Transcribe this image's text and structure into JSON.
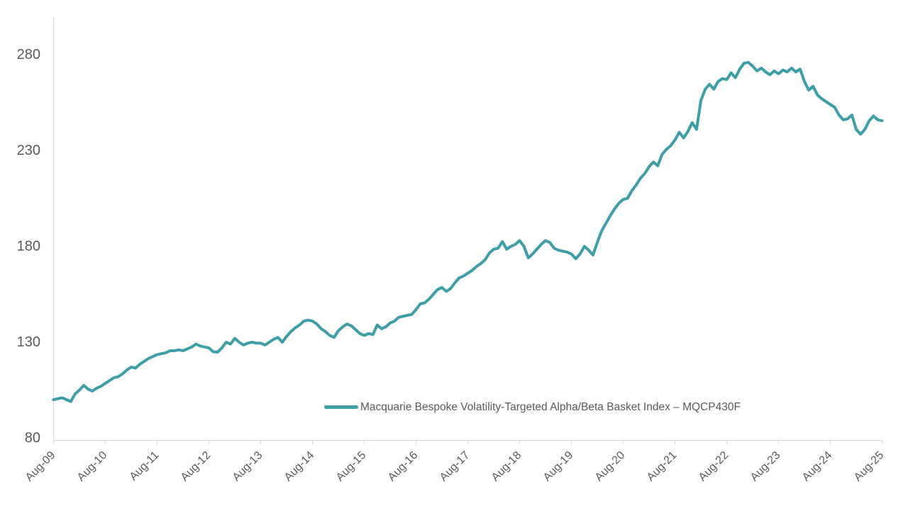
{
  "chart_data": {
    "type": "line",
    "title": "",
    "xlabel": "",
    "ylabel": "",
    "x_frequency": "monthly",
    "x_tick_labels": [
      "Aug-09",
      "Aug-10",
      "Aug-11",
      "Aug-12",
      "Aug-13",
      "Aug-14",
      "Aug-15",
      "Aug-16",
      "Aug-17",
      "Aug-18",
      "Aug-19",
      "Aug-20",
      "Aug-21",
      "Aug-22",
      "Aug-23",
      "Aug-24",
      "Aug-25"
    ],
    "y_ticks": [
      80,
      130,
      180,
      230,
      280
    ],
    "ylim": [
      80,
      300
    ],
    "grid": false,
    "legend_position": "bottom-inside",
    "series": [
      {
        "name": "Macquarie Bespoke Volatility-Targeted Alpha/Beta Basket Index – MQCP430F",
        "color": "#3E9EA8",
        "values": [
          100,
          100.5,
          101,
          100,
          99,
          103,
          105,
          107.5,
          105.5,
          104.5,
          106,
          107,
          108.5,
          110,
          111.5,
          112,
          113.5,
          115.5,
          117,
          116.5,
          118.5,
          120,
          121.5,
          122.5,
          123.5,
          124,
          124.5,
          125.5,
          125.5,
          126,
          125.5,
          126.5,
          127.5,
          129,
          128,
          127.5,
          127,
          125,
          124.8,
          127,
          130,
          129,
          132,
          130,
          128.5,
          129.5,
          130,
          129.5,
          129.5,
          128.5,
          130,
          131.5,
          132.5,
          130,
          133,
          135.5,
          137.5,
          139,
          141,
          141.5,
          141,
          139.5,
          137,
          135.5,
          133.5,
          132.5,
          136,
          138,
          139.5,
          138.5,
          136.5,
          134.5,
          133.5,
          134.5,
          134,
          139,
          137,
          138,
          140,
          141,
          143,
          143.5,
          144,
          144.5,
          147,
          150,
          150.5,
          152.5,
          155,
          157.5,
          158.5,
          156.5,
          158,
          161,
          163.5,
          164.5,
          166,
          167.5,
          169.5,
          171,
          173,
          176.5,
          178.5,
          179,
          182.5,
          178.5,
          180,
          181,
          183,
          180,
          174,
          176,
          178.5,
          181,
          183,
          182,
          179,
          178,
          177.5,
          177,
          176,
          173.5,
          176,
          180,
          178,
          175.5,
          182,
          188,
          192,
          196,
          199.5,
          202.5,
          204.5,
          205,
          209,
          212,
          215.5,
          218,
          221.5,
          224,
          222,
          228,
          230.5,
          232.5,
          235.5,
          239.5,
          236.5,
          240,
          244.5,
          241,
          256,
          262,
          264.5,
          262,
          266,
          267.5,
          267,
          270.5,
          268,
          272.5,
          275.5,
          276,
          274,
          271.5,
          273,
          271,
          269.5,
          271.5,
          270,
          272,
          271,
          273,
          271,
          272.5,
          266,
          261.5,
          263.5,
          259,
          257,
          255.5,
          254,
          252.5,
          248.5,
          246,
          246.5,
          248.5,
          241,
          238.5,
          241,
          245.5,
          248,
          246,
          245.5
        ]
      }
    ]
  },
  "style_colors": {
    "axis_line": "#d9d9d9",
    "tick_label": "#58595b",
    "legend_text": "#595959"
  }
}
